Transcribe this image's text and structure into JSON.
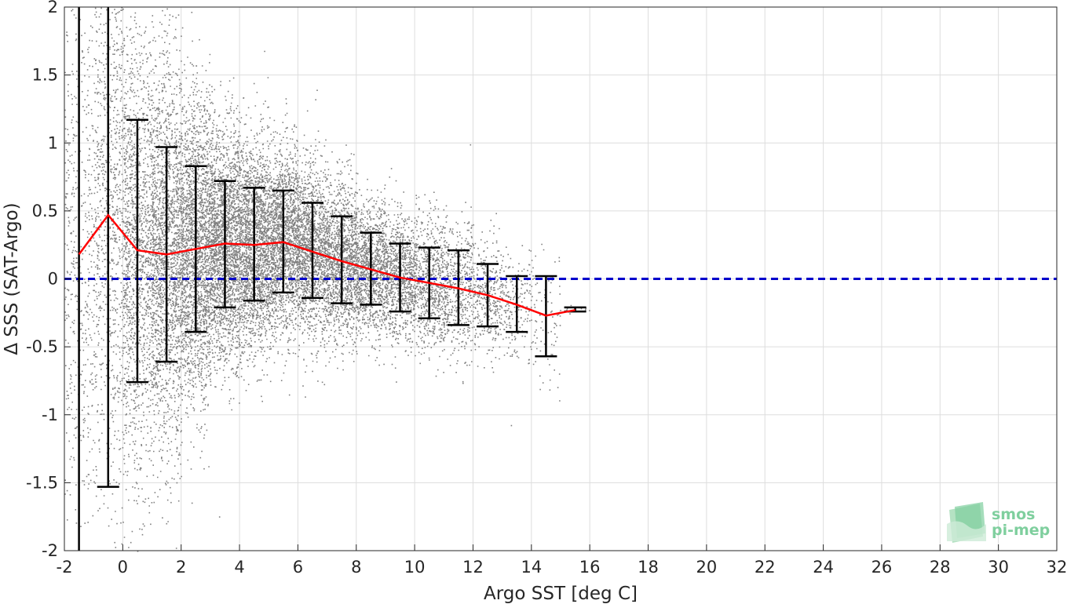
{
  "chart_data": {
    "type": "scatter",
    "xlabel": "Argo SST [deg C]",
    "ylabel": "Δ SSS (SAT-Argo)",
    "xlim": [
      -2,
      32
    ],
    "ylim": [
      -2,
      2
    ],
    "xticks": [
      -2,
      0,
      2,
      4,
      6,
      8,
      10,
      12,
      14,
      16,
      18,
      20,
      22,
      24,
      26,
      28,
      30,
      32
    ],
    "yticks": [
      -2,
      -1.5,
      -1,
      -0.5,
      0,
      0.5,
      1,
      1.5,
      2
    ],
    "grid": true,
    "colors": {
      "scatter": "#808080",
      "mean_line": "#ff0000",
      "error_bars": "#000000",
      "zero_line": "#0000cc",
      "grid": "#dddddd"
    },
    "zero_line": {
      "y": 0,
      "style": "dashed"
    },
    "bins": {
      "x": [
        -1.5,
        -0.5,
        0.5,
        1.5,
        2.5,
        3.5,
        4.5,
        5.5,
        6.5,
        7.5,
        8.5,
        9.5,
        10.5,
        11.5,
        12.5,
        13.5,
        14.5,
        15.5
      ],
      "mean": [
        0.18,
        0.47,
        0.21,
        0.18,
        0.22,
        0.26,
        0.25,
        0.27,
        0.2,
        0.13,
        0.07,
        0.01,
        -0.03,
        -0.07,
        -0.12,
        -0.19,
        -0.27,
        -0.23
      ],
      "lower": [
        -2.0,
        -1.53,
        -0.76,
        -0.61,
        -0.39,
        -0.21,
        -0.16,
        -0.1,
        -0.14,
        -0.18,
        -0.19,
        -0.24,
        -0.29,
        -0.34,
        -0.35,
        -0.39,
        -0.57,
        -0.24
      ],
      "upper": [
        2.0,
        2.0,
        1.17,
        0.97,
        0.83,
        0.72,
        0.67,
        0.65,
        0.56,
        0.46,
        0.34,
        0.26,
        0.23,
        0.21,
        0.11,
        0.02,
        0.02,
        -0.21
      ]
    }
  },
  "logo": {
    "line1": "smos",
    "line2": "pi-mep"
  }
}
